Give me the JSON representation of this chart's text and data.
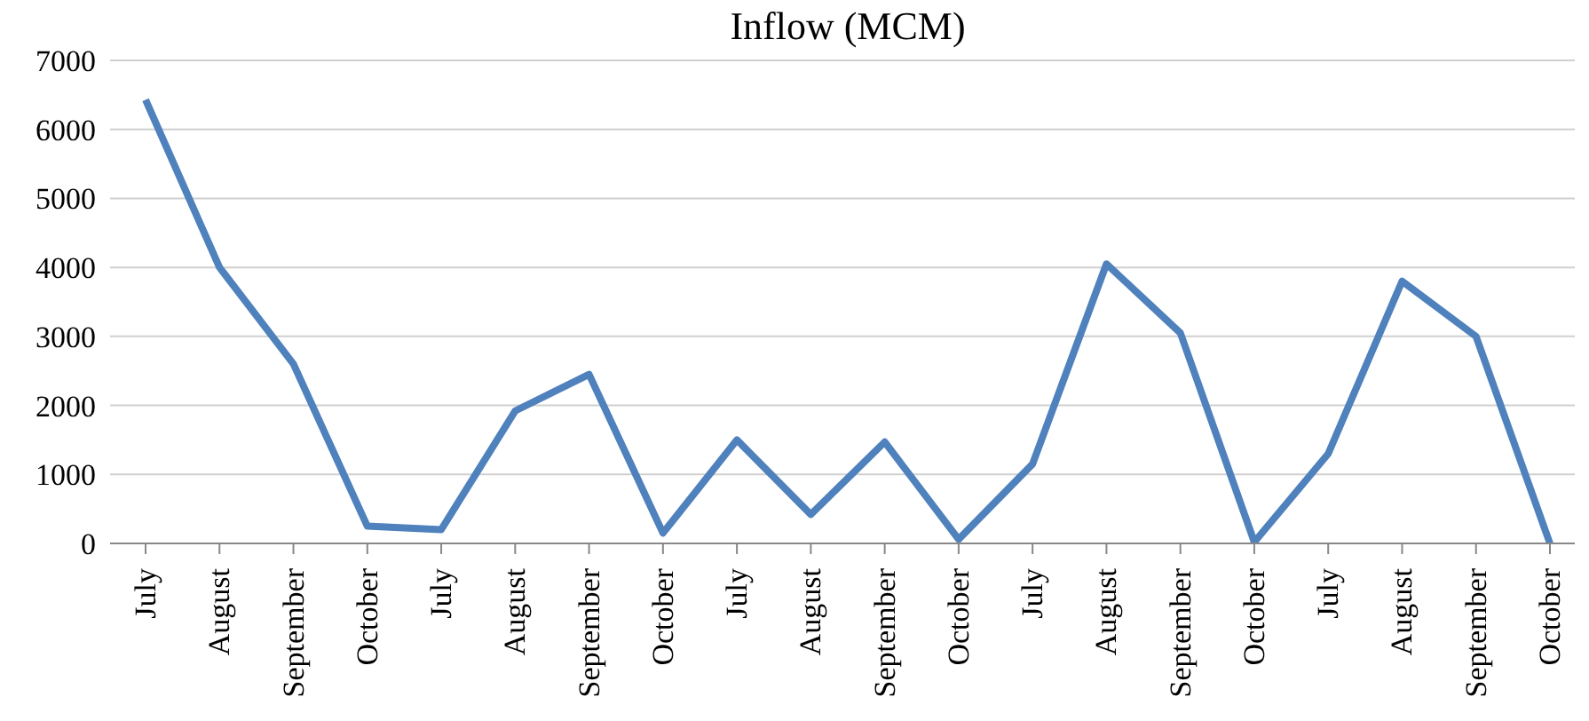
{
  "chart_data": {
    "type": "line",
    "title": "Inflow (MCM)",
    "categories": [
      "July",
      "August",
      "September",
      "October",
      "July",
      "August",
      "September",
      "October",
      "July",
      "August",
      "September",
      "October",
      "July",
      "August",
      "September",
      "October",
      "July",
      "August",
      "September",
      "October"
    ],
    "values": [
      6430,
      4000,
      2600,
      250,
      200,
      1920,
      2450,
      150,
      1500,
      420,
      1470,
      60,
      1150,
      4050,
      3050,
      20,
      1300,
      3800,
      3000,
      0
    ],
    "color": "#4f81bd",
    "ylim": [
      0,
      7000
    ],
    "yticks": [
      0,
      1000,
      2000,
      3000,
      4000,
      5000,
      6000,
      7000
    ],
    "grid": "y",
    "marker": "none",
    "line_style": "solid"
  }
}
